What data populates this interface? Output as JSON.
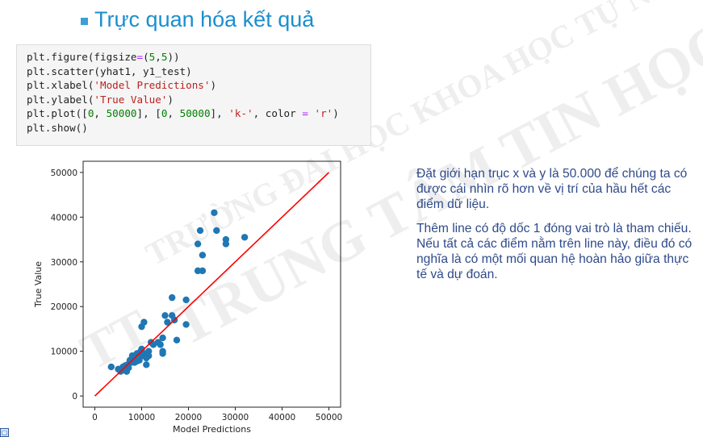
{
  "slide": {
    "title": "Trực quan hóa kết quả",
    "code": [
      [
        {
          "t": "plt.figure(figsize",
          "c": "p"
        },
        {
          "t": "=",
          "c": "op"
        },
        {
          "t": "(",
          "c": "p"
        },
        {
          "t": "5",
          "c": "n"
        },
        {
          "t": ",",
          "c": "p"
        },
        {
          "t": "5",
          "c": "n"
        },
        {
          "t": "))",
          "c": "p"
        }
      ],
      [
        {
          "t": "plt.scatter(yhat1, y1_test)",
          "c": "p"
        }
      ],
      [
        {
          "t": "plt.xlabel(",
          "c": "p"
        },
        {
          "t": "'Model Predictions'",
          "c": "s"
        },
        {
          "t": ")",
          "c": "p"
        }
      ],
      [
        {
          "t": "plt.ylabel(",
          "c": "p"
        },
        {
          "t": "'True Value'",
          "c": "s"
        },
        {
          "t": ")",
          "c": "p"
        }
      ],
      [
        {
          "t": "plt.plot([",
          "c": "p"
        },
        {
          "t": "0",
          "c": "n"
        },
        {
          "t": ", ",
          "c": "p"
        },
        {
          "t": "50000",
          "c": "n"
        },
        {
          "t": "], [",
          "c": "p"
        },
        {
          "t": "0",
          "c": "n"
        },
        {
          "t": ", ",
          "c": "p"
        },
        {
          "t": "50000",
          "c": "n"
        },
        {
          "t": "], ",
          "c": "p"
        },
        {
          "t": "'k-'",
          "c": "s"
        },
        {
          "t": ", color ",
          "c": "p"
        },
        {
          "t": "=",
          "c": "op"
        },
        {
          "t": " ",
          "c": "p"
        },
        {
          "t": "'r'",
          "c": "s"
        },
        {
          "t": ")",
          "c": "p"
        }
      ],
      [
        {
          "t": "plt.show()",
          "c": "p"
        }
      ]
    ],
    "description": [
      "Đặt giới hạn trục x và y là 50.000 để chúng ta có được cái nhìn rõ hơn về vị trí của hầu hết các điểm dữ liệu.",
      "Thêm line có độ dốc 1 đóng vai trò là tham chiếu. Nếu tất cả các điểm nằm trên line này, điều đó có nghĩa là có một mối quan hệ hoàn hảo giữa thực tế và dự đoán."
    ],
    "watermark": [
      "TRƯỜNG ĐẠI HỌC KHOA HỌC TỰ NHIÊN",
      "TRUNG TÂM TIN HỌC",
      "TT"
    ],
    "corner_icon": "slide-number-icon"
  },
  "chart_data": {
    "type": "scatter",
    "xlabel": "Model Predictions",
    "ylabel": "True Value",
    "xlim": [
      -2500,
      52500
    ],
    "ylim": [
      -2500,
      52500
    ],
    "xticks": [
      0,
      10000,
      20000,
      30000,
      40000,
      50000
    ],
    "yticks": [
      0,
      10000,
      20000,
      30000,
      40000,
      50000
    ],
    "point_color": "#1f77b4",
    "line_color": "#ff0000",
    "reference_line": {
      "x": [
        0,
        50000
      ],
      "y": [
        0,
        50000
      ]
    },
    "points": [
      [
        3500,
        6500
      ],
      [
        5000,
        6000
      ],
      [
        5500,
        5500
      ],
      [
        6000,
        6500
      ],
      [
        6000,
        5800
      ],
      [
        6500,
        6800
      ],
      [
        6800,
        5500
      ],
      [
        7000,
        7000
      ],
      [
        7200,
        6300
      ],
      [
        7500,
        8000
      ],
      [
        7800,
        7500
      ],
      [
        8000,
        9000
      ],
      [
        8200,
        8500
      ],
      [
        8500,
        7500
      ],
      [
        9000,
        7800
      ],
      [
        9000,
        9500
      ],
      [
        9500,
        8000
      ],
      [
        10000,
        9000
      ],
      [
        10000,
        10500
      ],
      [
        10000,
        15500
      ],
      [
        10500,
        16500
      ],
      [
        11000,
        8500
      ],
      [
        11000,
        9500
      ],
      [
        11000,
        7000
      ],
      [
        11500,
        10000
      ],
      [
        11500,
        9000
      ],
      [
        12500,
        11500
      ],
      [
        13500,
        12000
      ],
      [
        14000,
        11500
      ],
      [
        14500,
        10000
      ],
      [
        14500,
        9500
      ],
      [
        14500,
        13000
      ],
      [
        15000,
        18000
      ],
      [
        15500,
        16500
      ],
      [
        16500,
        18000
      ],
      [
        16500,
        22000
      ],
      [
        17000,
        17000
      ],
      [
        17500,
        12500
      ],
      [
        19500,
        21500
      ],
      [
        19500,
        16000
      ],
      [
        22000,
        28000
      ],
      [
        22000,
        34000
      ],
      [
        22500,
        37000
      ],
      [
        23000,
        28000
      ],
      [
        23000,
        31500
      ],
      [
        25500,
        41000
      ],
      [
        26000,
        37000
      ],
      [
        28000,
        35000
      ],
      [
        28000,
        34000
      ],
      [
        32000,
        35500
      ],
      [
        7500,
        7800
      ],
      [
        8800,
        8200
      ],
      [
        9800,
        10000
      ],
      [
        12000,
        12000
      ]
    ]
  }
}
